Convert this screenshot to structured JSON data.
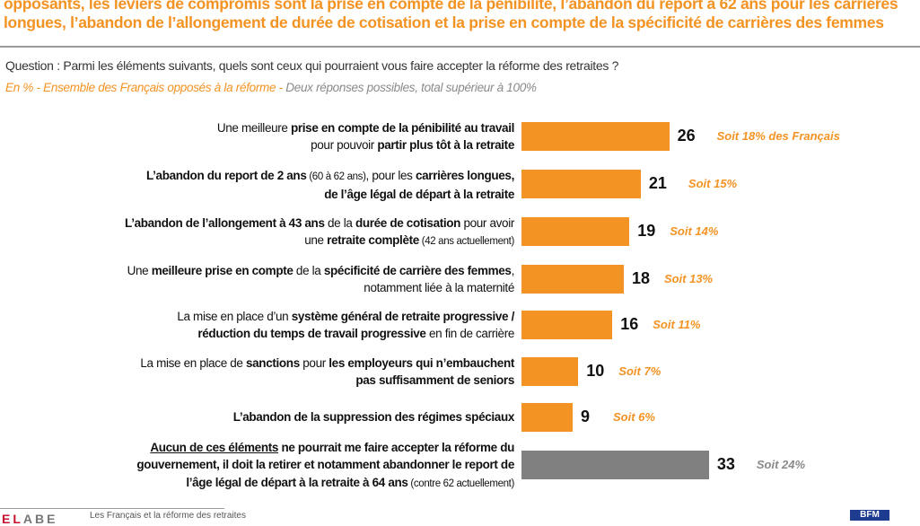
{
  "header": {
    "title_line1": "opposants, les leviers de compromis sont la prise en compte de la pénibilité, l’abandon du report à 62 ans pour les carrières",
    "title_line2": "longues, l’abandon de l’allongement de durée de cotisation et la prise en compte de la spécificité de carrières des femmes"
  },
  "question": "Question : Parmi les éléments suivants, quels sont ceux qui pourraient vous faire accepter la réforme des retraites ?",
  "subtitle": {
    "orange": "En % - Ensemble des Français opposés à la réforme - ",
    "gray": "Deux réponses possibles, total supérieur à 100%"
  },
  "footer": {
    "text": "Les Français et la réforme des retraites",
    "logo": "ELABE",
    "partner_logo": "BFM"
  },
  "colors": {
    "accent": "#f39323",
    "gray_bar": "#808080"
  },
  "chart_data": {
    "type": "bar",
    "orientation": "horizontal",
    "xlim": [
      0,
      40
    ],
    "grid": false,
    "categories": [
      [
        [
          [
            "n",
            "Une meilleure "
          ],
          [
            "b",
            "prise en compte de la pénibilité au travail"
          ]
        ],
        [
          [
            "n",
            "pour pouvoir "
          ],
          [
            "b",
            "partir plus tôt à la retraite"
          ]
        ]
      ],
      [
        [
          [
            "b",
            "L’abandon du report de 2 ans"
          ],
          [
            "s",
            " (60 à 62 ans)"
          ],
          [
            "n",
            ", pour les "
          ],
          [
            "b",
            "carrières longues,"
          ]
        ],
        [
          [
            "b",
            "de l’âge légal de départ à la retraite"
          ]
        ]
      ],
      [
        [
          [
            "b",
            "L’abandon de l’allongement à 43 ans"
          ],
          [
            "n",
            " de la "
          ],
          [
            "b",
            "durée de cotisation"
          ],
          [
            "n",
            " pour avoir"
          ]
        ],
        [
          [
            "n",
            "une "
          ],
          [
            "b",
            "retraite complète"
          ],
          [
            "s",
            " (42 ans actuellement)"
          ]
        ]
      ],
      [
        [
          [
            "n",
            "Une "
          ],
          [
            "b",
            "meilleure prise en compte"
          ],
          [
            "n",
            " de la "
          ],
          [
            "b",
            "spécificité de carrière des femmes"
          ],
          [
            "n",
            ","
          ]
        ],
        [
          [
            "n",
            "notamment liée à la maternité"
          ]
        ]
      ],
      [
        [
          [
            "n",
            "La mise en place d’un "
          ],
          [
            "b",
            "système général de retraite progressive /"
          ]
        ],
        [
          [
            "b",
            "réduction du temps de travail progressive"
          ],
          [
            "n",
            " en fin de carrière"
          ]
        ]
      ],
      [
        [
          [
            "n",
            "La mise en place de "
          ],
          [
            "b",
            "sanctions"
          ],
          [
            "n",
            " pour "
          ],
          [
            "b",
            "les employeurs qui n’embauchent"
          ]
        ],
        [
          [
            "b",
            "pas suffisamment de seniors"
          ]
        ]
      ],
      [
        [
          [
            "b",
            "L’abandon de la suppression des régimes spéciaux"
          ]
        ]
      ],
      [
        [
          [
            "bu",
            "Aucun de ces éléments"
          ],
          [
            "b",
            " ne pourrait me faire accepter la réforme du"
          ]
        ],
        [
          [
            "b",
            "gouvernement, il doit la retirer et notamment abandonner le report de"
          ]
        ],
        [
          [
            "b",
            "l’âge légal de départ à la retraite à 64 ans"
          ],
          [
            "s",
            " (contre 62 actuellement)"
          ]
        ]
      ]
    ],
    "values": [
      26,
      21,
      19,
      18,
      16,
      10,
      9,
      33
    ],
    "annotations": [
      "Soit 18% des Français",
      "Soit 15%",
      "Soit 14%",
      "Soit 13%",
      "Soit 11%",
      "Soit 7%",
      "Soit 6%",
      "Soit 24%"
    ]
  }
}
